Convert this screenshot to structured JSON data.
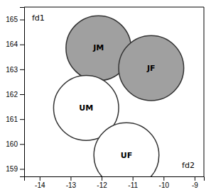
{
  "chart_data": {
    "type": "bubble",
    "x": [
      -12.1,
      -10.4,
      -12.5,
      -11.2
    ],
    "values": [
      163.85,
      163.05,
      161.45,
      159.55
    ],
    "sizes": [
      1.05,
      1.05,
      1.05,
      1.05
    ],
    "labels": [
      "JM",
      "JF",
      "UM",
      "UF"
    ],
    "colors": [
      "#a0a0a0",
      "#a0a0a0",
      "#ffffff",
      "#ffffff"
    ],
    "xlim": [
      -14.5,
      -8.7
    ],
    "ylim": [
      158.7,
      165.5
    ],
    "xticks": [
      -14,
      -13,
      -12,
      -11,
      -10,
      -9
    ],
    "yticks": [
      159,
      160,
      161,
      162,
      163,
      164,
      165
    ],
    "annotations": [
      {
        "text": "fd1",
        "x": -14.25,
        "y": 165.2
      },
      {
        "text": "fd2",
        "x": -9.0,
        "y": 159.05
      }
    ]
  }
}
